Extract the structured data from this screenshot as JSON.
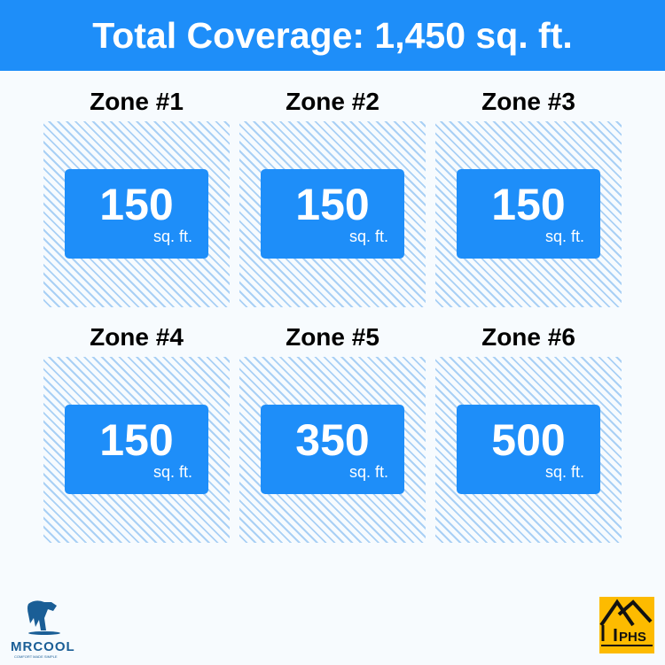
{
  "header": {
    "title": "Total Coverage: 1,450 sq. ft."
  },
  "zones": [
    {
      "label": "Zone #1",
      "value": "150",
      "unit": "sq. ft."
    },
    {
      "label": "Zone #2",
      "value": "150",
      "unit": "sq. ft."
    },
    {
      "label": "Zone #3",
      "value": "150",
      "unit": "sq. ft."
    },
    {
      "label": "Zone #4",
      "value": "150",
      "unit": "sq. ft."
    },
    {
      "label": "Zone #5",
      "value": "350",
      "unit": "sq. ft."
    },
    {
      "label": "Zone #6",
      "value": "500",
      "unit": "sq. ft."
    }
  ],
  "logos": {
    "left": {
      "name": "MRCOOL",
      "tagline": "COMFORT MADE SIMPLE"
    },
    "right": {
      "name": "PHS"
    }
  },
  "colors": {
    "accent": "#1e8ef9",
    "logo_blue": "#1a5e96",
    "phs_yellow": "#fdbb00"
  }
}
